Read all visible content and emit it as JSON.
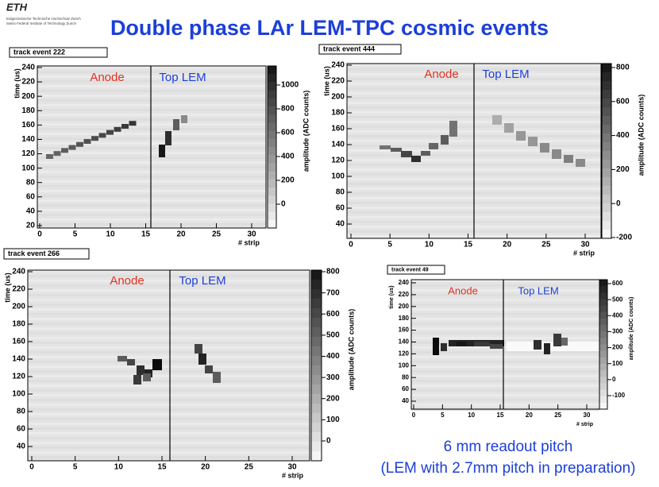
{
  "header": {
    "logo": "ETH",
    "line1": "Eidgenössische Technische Hochschule Zürich",
    "line2": "Swiss Federal Institute of Technology Zurich"
  },
  "title": "Double phase LAr LEM-TPC cosmic events",
  "panels": [
    {
      "label": "track event 222",
      "anode": "Anode",
      "top_lem": "Top LEM",
      "y_label": "time (us)",
      "x_label": "# strip",
      "colorbar_label": "amplitude (ADC counts)",
      "yticks": [
        20,
        40,
        60,
        80,
        100,
        120,
        140,
        160,
        180,
        200,
        220,
        240
      ],
      "xticks": [
        0,
        5,
        10,
        15,
        20,
        25,
        30
      ],
      "cticks": [
        0,
        200,
        400,
        600,
        800,
        1000
      ]
    },
    {
      "label": "track event 444",
      "anode": "Anode",
      "top_lem": "Top LEM",
      "y_label": "time (us)",
      "x_label": "# strip",
      "colorbar_label": "amplitude (ADC counts)",
      "yticks": [
        40,
        60,
        80,
        100,
        120,
        140,
        160,
        180,
        200,
        220,
        240
      ],
      "xticks": [
        0,
        5,
        10,
        15,
        20,
        25,
        30
      ],
      "cticks": [
        -200,
        0,
        200,
        400,
        600,
        800
      ]
    },
    {
      "label": "track event 266",
      "anode": "Anode",
      "top_lem": "Top LEM",
      "y_label": "time (us)",
      "x_label": "# strip",
      "colorbar_label": "amplitude (ADC counts)",
      "yticks": [
        40,
        60,
        80,
        100,
        120,
        140,
        160,
        180,
        200,
        220,
        240
      ],
      "xticks": [
        0,
        5,
        10,
        15,
        20,
        25,
        30
      ],
      "cticks": [
        0,
        100,
        200,
        300,
        400,
        500,
        600,
        700,
        800
      ]
    },
    {
      "label": "track event 49",
      "anode": "Anode",
      "top_lem": "Top LEM",
      "y_label": "time (us)",
      "x_label": "# strip",
      "colorbar_label": "amplitude (ADC counts)",
      "yticks": [
        40,
        60,
        80,
        100,
        120,
        140,
        160,
        180,
        200,
        220,
        240
      ],
      "xticks": [
        0,
        5,
        10,
        15,
        20,
        25,
        30
      ],
      "cticks": [
        -100,
        0,
        100,
        200,
        300,
        400,
        500,
        600
      ]
    }
  ],
  "footer": {
    "line1": "6 mm readout pitch",
    "line2": "(LEM with 2.7mm pitch in preparation)"
  }
}
